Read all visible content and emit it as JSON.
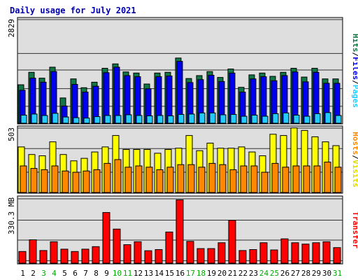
{
  "chart_data": [
    {
      "type": "bar",
      "title": "Daily usage for July 2021",
      "panel": "hits-files-pages",
      "right_label": {
        "parts": [
          "Hits",
          "Files",
          "Pages"
        ],
        "separator": "/"
      },
      "scale_max_label": "2829",
      "ylim": [
        0,
        2829
      ],
      "categories": [
        "1",
        "2",
        "3",
        "4",
        "5",
        "6",
        "7",
        "8",
        "9",
        "10",
        "11",
        "12",
        "13",
        "14",
        "15",
        "16",
        "17",
        "18",
        "19",
        "20",
        "21",
        "22",
        "23",
        "24",
        "25",
        "26",
        "27",
        "28",
        "29",
        "30",
        "31"
      ],
      "series": [
        {
          "name": "Hits",
          "color": "#117744",
          "values": [
            1050,
            1390,
            1230,
            1530,
            690,
            1210,
            970,
            1120,
            1500,
            1620,
            1400,
            1370,
            1070,
            1370,
            1390,
            1780,
            1220,
            1300,
            1410,
            1250,
            1480,
            980,
            1320,
            1370,
            1280,
            1390,
            1500,
            1260,
            1500,
            1210,
            1210
          ]
        },
        {
          "name": "Files",
          "color": "#0000ee",
          "values": [
            900,
            1230,
            1120,
            1410,
            470,
            1060,
            850,
            1010,
            1380,
            1530,
            1300,
            1270,
            940,
            1270,
            1290,
            1690,
            1110,
            1190,
            1310,
            1140,
            1370,
            850,
            1210,
            1270,
            1160,
            1300,
            1400,
            1130,
            1390,
            1090,
            1090
          ]
        },
        {
          "name": "Pages",
          "color": "#22ccff",
          "values": [
            220,
            250,
            210,
            270,
            170,
            150,
            140,
            180,
            210,
            210,
            230,
            210,
            200,
            210,
            200,
            240,
            250,
            280,
            280,
            230,
            240,
            190,
            220,
            190,
            260,
            280,
            220,
            190,
            260,
            290,
            210
          ]
        }
      ]
    },
    {
      "type": "bar",
      "panel": "hosts-visits",
      "right_label": {
        "parts": [
          "Hosts",
          "Visits"
        ],
        "separator": "/"
      },
      "scale_max_label": "503",
      "ylim": [
        0,
        503
      ],
      "categories": [
        "1",
        "2",
        "3",
        "4",
        "5",
        "6",
        "7",
        "8",
        "9",
        "10",
        "11",
        "12",
        "13",
        "14",
        "15",
        "16",
        "17",
        "18",
        "19",
        "20",
        "21",
        "22",
        "23",
        "24",
        "25",
        "26",
        "27",
        "28",
        "29",
        "30",
        "31"
      ],
      "series": [
        {
          "name": "Visits",
          "color": "#ffff00",
          "values": [
            360,
            300,
            290,
            400,
            300,
            250,
            270,
            320,
            360,
            450,
            340,
            340,
            340,
            310,
            340,
            350,
            450,
            330,
            390,
            350,
            350,
            360,
            320,
            290,
            460,
            450,
            510,
            490,
            440,
            400,
            370
          ]
        },
        {
          "name": "Hosts",
          "color": "#ff8800",
          "values": [
            210,
            190,
            180,
            210,
            170,
            160,
            170,
            180,
            230,
            260,
            200,
            210,
            200,
            180,
            200,
            220,
            220,
            200,
            230,
            220,
            180,
            210,
            210,
            160,
            230,
            200,
            210,
            210,
            210,
            240,
            200
          ]
        }
      ]
    },
    {
      "type": "bar",
      "panel": "transfer",
      "right_label": {
        "parts": [
          "Transfer"
        ],
        "separator": ""
      },
      "scale_max_label": "330.3 MB",
      "ylim": [
        0,
        330.3
      ],
      "y_unit": "MB",
      "categories": [
        "1",
        "2",
        "3",
        "4",
        "5",
        "6",
        "7",
        "8",
        "9",
        "10",
        "11",
        "12",
        "13",
        "14",
        "15",
        "16",
        "17",
        "18",
        "19",
        "20",
        "21",
        "22",
        "23",
        "24",
        "25",
        "26",
        "27",
        "28",
        "29",
        "30",
        "31"
      ],
      "series": [
        {
          "name": "Transfer",
          "color": "#ff0000",
          "values": [
            60,
            120,
            65,
            110,
            72,
            60,
            72,
            85,
            260,
            175,
            95,
            110,
            64,
            70,
            160,
            325,
            112,
            75,
            75,
            105,
            220,
            65,
            70,
            105,
            68,
            125,
            105,
            98,
            105,
            110,
            80
          ]
        }
      ]
    }
  ],
  "x_axis": {
    "labels": [
      "1",
      "2",
      "3",
      "4",
      "5",
      "6",
      "7",
      "8",
      "9",
      "10",
      "11",
      "12",
      "13",
      "14",
      "15",
      "16",
      "17",
      "18",
      "19",
      "20",
      "21",
      "22",
      "23",
      "24",
      "25",
      "26",
      "27",
      "28",
      "29",
      "30",
      "31"
    ],
    "weekend_days": [
      "3",
      "4",
      "10",
      "11",
      "17",
      "18",
      "24",
      "25",
      "31"
    ],
    "weekday_color": "#000000",
    "weekend_color": "#00aa00"
  },
  "colors": {
    "background": "#ffffff",
    "panel": "#dedede",
    "grid": "#333333",
    "title": "#0000aa",
    "label_hits": "#117744",
    "label_files": "#0000ee",
    "label_pages": "#22ccff",
    "label_hosts": "#ff8800",
    "label_visits": "#dddd00",
    "label_transfer": "#ff0000"
  }
}
